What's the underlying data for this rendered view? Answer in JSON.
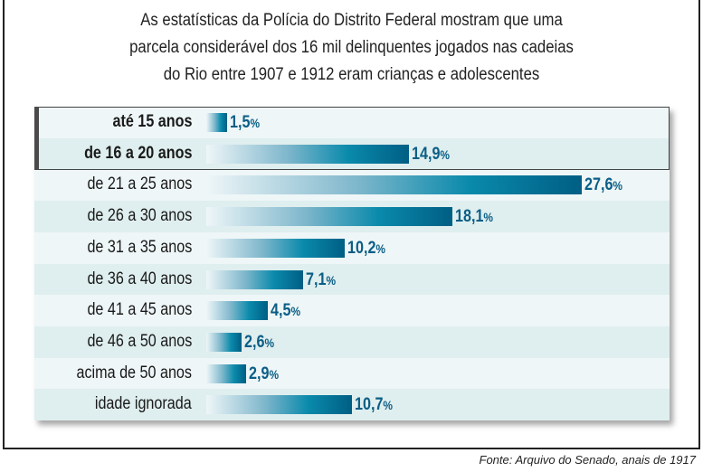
{
  "chart_data": {
    "type": "bar",
    "orientation": "horizontal",
    "title": "As estatísticas da Polícia do Distrito Federal mostram que uma parcela considerável dos 16 mil delinquentes jogados nas cadeias do Rio entre 1907 e 1912 eram crianças e adolescentes",
    "title_lines": [
      "As estatísticas da Polícia do Distrito Federal mostram que uma",
      "parcela considerável dos 16 mil delinquentes jogados nas cadeias",
      "do Rio entre 1907 e 1912 eram crianças e adolescentes"
    ],
    "categories": [
      "até 15 anos",
      "de 16 a 20 anos",
      "de 21 a 25 anos",
      "de 26 a 30 anos",
      "de 31 a 35 anos",
      "de 36 a 40 anos",
      "de 41 a 45 anos",
      "de 46 a 50 anos",
      "acima de 50 anos",
      "idade ignorada"
    ],
    "values": [
      1.5,
      14.9,
      27.6,
      18.1,
      10.2,
      7.1,
      4.5,
      2.6,
      2.9,
      10.7
    ],
    "data_labels": [
      "1,5",
      "14,9",
      "27,6",
      "18,1",
      "10,2",
      "7,1",
      "4,5",
      "2,6",
      "2,9",
      "10,7"
    ],
    "unit": "%",
    "highlighted": [
      "até 15 anos",
      "de 16 a 20 anos"
    ],
    "bar_color": "#005e84",
    "source": "Fonte: Arquivo do Senado, anais de 1917"
  }
}
